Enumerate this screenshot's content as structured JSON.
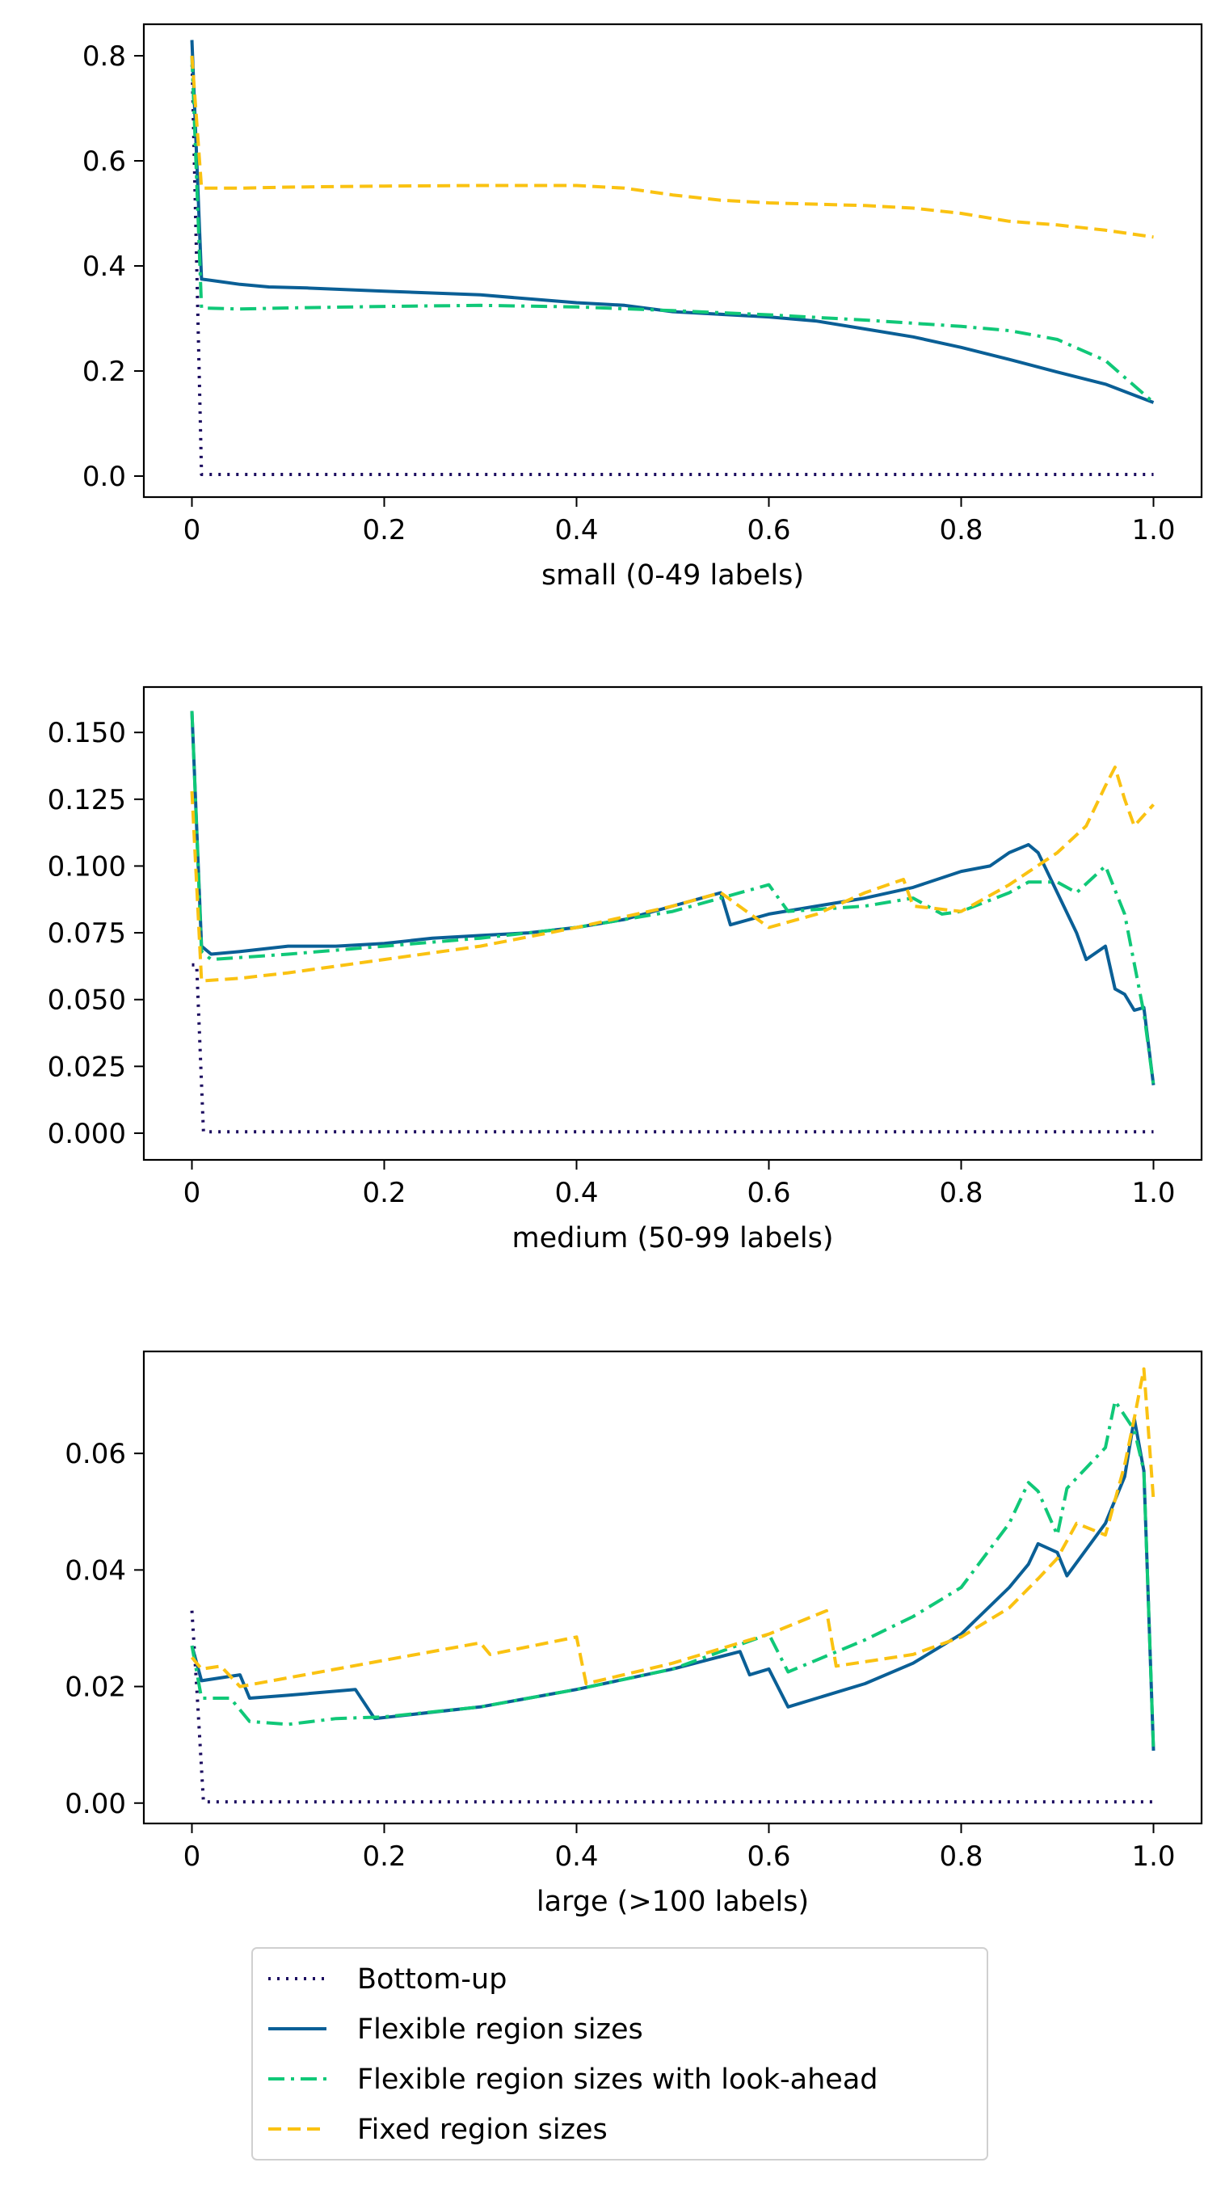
{
  "series_styles": [
    {
      "key": "bottom_up",
      "color": "#1a0a5e",
      "dash": "3,8"
    },
    {
      "key": "flexible",
      "color": "#0a5f96",
      "dash": ""
    },
    {
      "key": "lookahead",
      "color": "#10c878",
      "dash": "20,8,4,8"
    },
    {
      "key": "fixed",
      "color": "#fac211",
      "dash": "16,8"
    }
  ],
  "chart_data": [
    {
      "type": "line",
      "xlabel": "small (0-49 labels)",
      "ylabel": "",
      "xlim": [
        -0.05,
        1.05
      ],
      "ylim": [
        -0.04,
        0.86
      ],
      "xticks": [
        0,
        0.2,
        0.4,
        0.6,
        0.8,
        1.0
      ],
      "xtick_labels": [
        "0",
        "0.2",
        "0.4",
        "0.6",
        "0.8",
        "1.0"
      ],
      "yticks": [
        0,
        0.2,
        0.4,
        0.6,
        0.8
      ],
      "ytick_labels": [
        "0.0",
        "0.2",
        "0.4",
        "0.6",
        "0.8"
      ],
      "series": [
        {
          "name": "Bottom-up",
          "x": [
            0,
            0.01,
            0.02,
            1.0
          ],
          "y": [
            0.8,
            0.003,
            0.003,
            0.003
          ]
        },
        {
          "name": "Flexible region sizes",
          "x": [
            0,
            0.01,
            0.03,
            0.05,
            0.08,
            0.12,
            0.2,
            0.3,
            0.4,
            0.45,
            0.5,
            0.6,
            0.65,
            0.7,
            0.75,
            0.8,
            0.85,
            0.9,
            0.95,
            1.0
          ],
          "y": [
            0.83,
            0.375,
            0.37,
            0.365,
            0.36,
            0.358,
            0.352,
            0.345,
            0.33,
            0.325,
            0.313,
            0.303,
            0.295,
            0.28,
            0.265,
            0.245,
            0.222,
            0.198,
            0.175,
            0.14
          ]
        },
        {
          "name": "Flexible region sizes with look-ahead",
          "x": [
            0,
            0.01,
            0.05,
            0.1,
            0.2,
            0.3,
            0.4,
            0.5,
            0.6,
            0.7,
            0.8,
            0.85,
            0.9,
            0.95,
            1.0
          ],
          "y": [
            0.8,
            0.32,
            0.318,
            0.32,
            0.323,
            0.325,
            0.322,
            0.315,
            0.307,
            0.297,
            0.285,
            0.277,
            0.26,
            0.22,
            0.14
          ]
        },
        {
          "name": "Fixed region sizes",
          "x": [
            0,
            0.01,
            0.05,
            0.1,
            0.2,
            0.3,
            0.4,
            0.45,
            0.5,
            0.55,
            0.6,
            0.7,
            0.75,
            0.8,
            0.85,
            0.9,
            0.95,
            1.0
          ],
          "y": [
            0.8,
            0.548,
            0.548,
            0.55,
            0.552,
            0.553,
            0.553,
            0.548,
            0.535,
            0.525,
            0.52,
            0.515,
            0.51,
            0.5,
            0.485,
            0.478,
            0.468,
            0.455
          ]
        }
      ]
    },
    {
      "type": "line",
      "xlabel": "medium (50-99 labels)",
      "ylabel": "",
      "xlim": [
        -0.05,
        1.05
      ],
      "ylim": [
        -0.01,
        0.167
      ],
      "xticks": [
        0,
        0.2,
        0.4,
        0.6,
        0.8,
        1.0
      ],
      "xtick_labels": [
        "0",
        "0.2",
        "0.4",
        "0.6",
        "0.8",
        "1.0"
      ],
      "yticks": [
        0,
        0.025,
        0.05,
        0.075,
        0.1,
        0.125,
        0.15
      ],
      "ytick_labels": [
        "0.000",
        "0.025",
        "0.050",
        "0.075",
        "0.100",
        "0.125",
        "0.150"
      ],
      "series": [
        {
          "name": "Bottom-up",
          "x": [
            0,
            0.005,
            0.012,
            1.0
          ],
          "y": [
            0.063,
            0.063,
            0.0005,
            0.0005
          ]
        },
        {
          "name": "Flexible region sizes",
          "x": [
            0,
            0.01,
            0.02,
            0.05,
            0.1,
            0.15,
            0.2,
            0.25,
            0.3,
            0.35,
            0.4,
            0.45,
            0.5,
            0.55,
            0.56,
            0.6,
            0.65,
            0.7,
            0.75,
            0.8,
            0.83,
            0.85,
            0.87,
            0.88,
            0.9,
            0.92,
            0.93,
            0.95,
            0.96,
            0.97,
            0.98,
            0.99,
            1.0
          ],
          "y": [
            0.158,
            0.07,
            0.067,
            0.068,
            0.07,
            0.07,
            0.071,
            0.073,
            0.074,
            0.075,
            0.077,
            0.08,
            0.085,
            0.09,
            0.078,
            0.082,
            0.085,
            0.088,
            0.092,
            0.098,
            0.1,
            0.105,
            0.108,
            0.105,
            0.09,
            0.075,
            0.065,
            0.07,
            0.054,
            0.052,
            0.046,
            0.047,
            0.018
          ]
        },
        {
          "name": "Flexible region sizes with look-ahead",
          "x": [
            0,
            0.01,
            0.02,
            0.1,
            0.2,
            0.3,
            0.4,
            0.5,
            0.55,
            0.6,
            0.62,
            0.7,
            0.75,
            0.78,
            0.8,
            0.85,
            0.87,
            0.9,
            0.92,
            0.95,
            0.97,
            0.99,
            1.0
          ],
          "y": [
            0.158,
            0.068,
            0.065,
            0.067,
            0.07,
            0.073,
            0.077,
            0.083,
            0.088,
            0.093,
            0.083,
            0.085,
            0.088,
            0.082,
            0.083,
            0.09,
            0.094,
            0.094,
            0.09,
            0.1,
            0.082,
            0.045,
            0.018
          ]
        },
        {
          "name": "Fixed region sizes",
          "x": [
            0,
            0.01,
            0.05,
            0.1,
            0.2,
            0.3,
            0.4,
            0.5,
            0.55,
            0.6,
            0.65,
            0.7,
            0.74,
            0.75,
            0.8,
            0.85,
            0.9,
            0.93,
            0.95,
            0.96,
            0.97,
            0.98,
            1.0
          ],
          "y": [
            0.128,
            0.057,
            0.058,
            0.06,
            0.065,
            0.07,
            0.077,
            0.085,
            0.09,
            0.077,
            0.082,
            0.09,
            0.095,
            0.085,
            0.083,
            0.093,
            0.105,
            0.115,
            0.13,
            0.137,
            0.125,
            0.115,
            0.123
          ]
        }
      ]
    },
    {
      "type": "line",
      "xlabel": "large (>100 labels)",
      "ylabel": "",
      "xlim": [
        -0.05,
        1.05
      ],
      "ylim": [
        -0.0035,
        0.0775
      ],
      "xticks": [
        0,
        0.2,
        0.4,
        0.6,
        0.8,
        1.0
      ],
      "xtick_labels": [
        "0",
        "0.2",
        "0.4",
        "0.6",
        "0.8",
        "1.0"
      ],
      "yticks": [
        0,
        0.02,
        0.04,
        0.06
      ],
      "ytick_labels": [
        "0.00",
        "0.02",
        "0.04",
        "0.06"
      ],
      "series": [
        {
          "name": "Bottom-up",
          "x": [
            0,
            0.005,
            0.012,
            1.0
          ],
          "y": [
            0.033,
            0.02,
            0.0002,
            0.0002
          ]
        },
        {
          "name": "Flexible region sizes",
          "x": [
            0,
            0.01,
            0.05,
            0.06,
            0.1,
            0.17,
            0.19,
            0.3,
            0.4,
            0.5,
            0.57,
            0.58,
            0.6,
            0.62,
            0.7,
            0.75,
            0.8,
            0.85,
            0.87,
            0.88,
            0.9,
            0.91,
            0.95,
            0.97,
            0.98,
            0.99,
            1.0
          ],
          "y": [
            0.027,
            0.021,
            0.022,
            0.018,
            0.0185,
            0.0195,
            0.0145,
            0.0165,
            0.0195,
            0.023,
            0.026,
            0.022,
            0.023,
            0.0165,
            0.0205,
            0.024,
            0.029,
            0.037,
            0.041,
            0.0445,
            0.043,
            0.039,
            0.048,
            0.056,
            0.066,
            0.057,
            0.009
          ]
        },
        {
          "name": "Flexible region sizes with look-ahead",
          "x": [
            0,
            0.01,
            0.04,
            0.06,
            0.1,
            0.15,
            0.2,
            0.3,
            0.4,
            0.5,
            0.55,
            0.6,
            0.62,
            0.7,
            0.75,
            0.8,
            0.85,
            0.87,
            0.88,
            0.9,
            0.91,
            0.95,
            0.96,
            0.98,
            0.99,
            1.0
          ],
          "y": [
            0.027,
            0.018,
            0.018,
            0.014,
            0.0135,
            0.0145,
            0.0148,
            0.0165,
            0.0195,
            0.023,
            0.026,
            0.029,
            0.0225,
            0.028,
            0.032,
            0.037,
            0.048,
            0.055,
            0.0535,
            0.046,
            0.054,
            0.061,
            0.069,
            0.064,
            0.057,
            0.009
          ]
        },
        {
          "name": "Fixed region sizes",
          "x": [
            0,
            0.01,
            0.03,
            0.05,
            0.1,
            0.2,
            0.3,
            0.31,
            0.4,
            0.41,
            0.5,
            0.6,
            0.66,
            0.67,
            0.75,
            0.8,
            0.85,
            0.88,
            0.9,
            0.92,
            0.95,
            0.97,
            0.98,
            0.99,
            1.0
          ],
          "y": [
            0.025,
            0.023,
            0.0235,
            0.02,
            0.0215,
            0.0245,
            0.0275,
            0.0255,
            0.0285,
            0.0205,
            0.024,
            0.029,
            0.033,
            0.0235,
            0.0255,
            0.0285,
            0.0335,
            0.0385,
            0.042,
            0.048,
            0.046,
            0.058,
            0.066,
            0.0745,
            0.052
          ]
        }
      ]
    }
  ],
  "legend": {
    "items": [
      {
        "label": "Bottom-up",
        "style": "bottom_up"
      },
      {
        "label": "Flexible region sizes",
        "style": "flexible"
      },
      {
        "label": "Flexible region sizes with look-ahead",
        "style": "lookahead"
      },
      {
        "label": "Fixed region sizes",
        "style": "fixed"
      }
    ]
  }
}
